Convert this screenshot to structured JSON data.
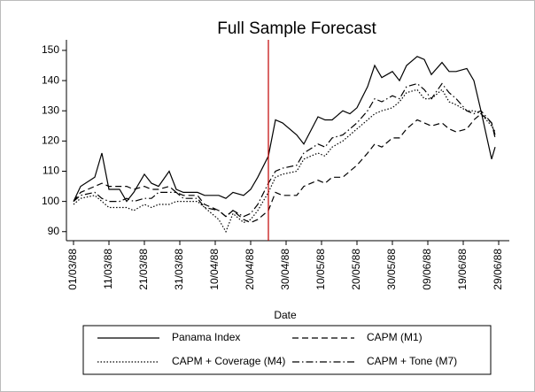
{
  "chart_data": {
    "type": "line",
    "title": "Full Sample Forecast",
    "x_label": "Date",
    "x": [
      "01/03/88",
      "03/03/88",
      "07/03/88",
      "09/03/88",
      "11/03/88",
      "14/03/88",
      "16/03/88",
      "18/03/88",
      "21/03/88",
      "23/03/88",
      "25/03/88",
      "28/03/88",
      "30/03/88",
      "01/04/88",
      "05/04/88",
      "07/04/88",
      "11/04/88",
      "13/04/88",
      "15/04/88",
      "18/04/88",
      "20/04/88",
      "22/04/88",
      "25/04/88",
      "27/04/88",
      "29/04/88",
      "03/05/88",
      "05/05/88",
      "09/05/88",
      "11/05/88",
      "13/05/88",
      "16/05/88",
      "18/05/88",
      "20/05/88",
      "23/05/88",
      "25/05/88",
      "27/05/88",
      "30/05/88",
      "01/06/88",
      "03/06/88",
      "06/06/88",
      "08/06/88",
      "10/06/88",
      "13/06/88",
      "15/06/88",
      "17/06/88",
      "20/06/88",
      "22/06/88",
      "24/06/88",
      "27/06/88",
      "28/06/88"
    ],
    "series": [
      {
        "name": "Panama Index",
        "color": "#000000",
        "dash": "none",
        "values": [
          100,
          105,
          108,
          116,
          104,
          104,
          100,
          103,
          109,
          106,
          105,
          110,
          104,
          103,
          103,
          102,
          102,
          101,
          103,
          102,
          104,
          108,
          115,
          127,
          126,
          122,
          119,
          128,
          127,
          127,
          130,
          129,
          131,
          138,
          145,
          141,
          143,
          140,
          145,
          148,
          147,
          142,
          146,
          143,
          143,
          144,
          140,
          130,
          114,
          118
        ]
      },
      {
        "name": "CAPM (M1)",
        "color": "#000000",
        "dash": "7,4",
        "values": [
          100,
          103,
          105,
          106,
          105,
          105,
          105,
          104,
          105,
          104,
          104,
          105,
          103,
          102,
          102,
          99,
          97,
          95,
          97,
          94,
          93,
          94,
          97,
          103,
          102,
          102,
          105,
          107,
          106,
          108,
          108,
          110,
          112,
          116,
          119,
          118,
          121,
          121,
          124,
          127,
          126,
          125,
          126,
          124,
          123,
          124,
          127,
          129,
          126,
          122
        ]
      },
      {
        "name": "CAPM + Coverage (M4)",
        "color": "#000000",
        "dash": "1.5,2",
        "values": [
          99,
          101,
          102,
          100,
          98,
          98,
          98,
          97,
          99,
          98,
          99,
          99,
          100,
          100,
          100,
          98,
          94,
          90,
          96,
          93,
          94,
          97,
          103,
          108,
          109,
          110,
          114,
          116,
          115,
          118,
          120,
          122,
          124,
          127,
          129,
          130,
          131,
          133,
          136,
          137,
          134,
          134,
          137,
          133,
          132,
          130,
          130,
          129,
          125,
          123
        ]
      },
      {
        "name": "CAPM + Tone (M7)",
        "color": "#000000",
        "dash": "8,3,1.5,3",
        "values": [
          100,
          102,
          103,
          101,
          100,
          100,
          101,
          100,
          101,
          101,
          103,
          103,
          103,
          101,
          101,
          98,
          97,
          95,
          97,
          95,
          96,
          99,
          106,
          110,
          111,
          112,
          116,
          119,
          118,
          121,
          122,
          124,
          126,
          130,
          134,
          133,
          135,
          134,
          138,
          139,
          137,
          134,
          139,
          136,
          134,
          130,
          129,
          130,
          126,
          121
        ]
      }
    ],
    "xlim": [
      "28/02/88",
      "02/07/88"
    ],
    "xticks": [
      "01/03/88",
      "11/03/88",
      "21/03/88",
      "31/03/88",
      "10/04/88",
      "20/04/88",
      "30/04/88",
      "10/05/88",
      "20/05/88",
      "30/05/88",
      "09/06/88",
      "19/06/88",
      "29/06/88"
    ],
    "ylim": [
      87,
      153.5
    ],
    "yticks": [
      90,
      100,
      110,
      120,
      130,
      140,
      150
    ],
    "vline": {
      "x": "25/04/88",
      "color": "#c00000"
    },
    "grid": false,
    "legend": "bottom"
  }
}
